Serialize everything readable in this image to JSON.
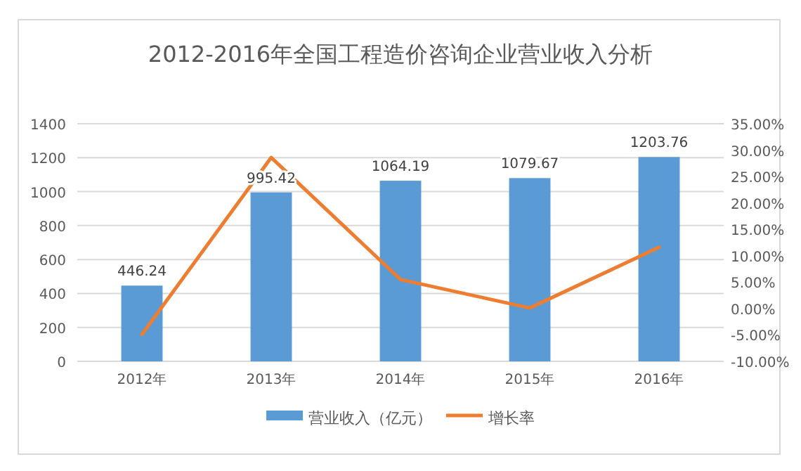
{
  "chart_data": {
    "type": "bar",
    "title": "2012-2016年全国工程造价咨询企业营业收入分析",
    "categories": [
      "2012年",
      "2013年",
      "2014年",
      "2015年",
      "2016年"
    ],
    "series": [
      {
        "name": "营业收入（亿元）",
        "color": "#5b9bd5",
        "values": [
          446.24,
          995.42,
          1064.19,
          1079.67,
          1203.76
        ],
        "value_labels": [
          "446.24",
          "995.42",
          "1064.19",
          "1079.67",
          "1203.76"
        ]
      },
      {
        "name": "增长率",
        "type": "line",
        "axis": "y2",
        "color": "#ed7d31",
        "values": [
          -4.9,
          28.6,
          5.5,
          0.1,
          11.6
        ]
      }
    ],
    "ylim": [
      0,
      1400
    ],
    "yticks": [
      0,
      200,
      400,
      600,
      800,
      1000,
      1200,
      1400
    ],
    "y2lim": [
      -10,
      35
    ],
    "y2ticks": [
      {
        "value": -10,
        "label": "-10.00%"
      },
      {
        "value": -5,
        "label": "-5.00%"
      },
      {
        "value": 0,
        "label": "0.00%"
      },
      {
        "value": 5,
        "label": "5.00%"
      },
      {
        "value": 10,
        "label": "10.00%"
      },
      {
        "value": 15,
        "label": "15.00%"
      },
      {
        "value": 20,
        "label": "20.00%"
      },
      {
        "value": 25,
        "label": "25.00%"
      },
      {
        "value": 30,
        "label": "30.00%"
      },
      {
        "value": 35,
        "label": "35.00%"
      }
    ],
    "grid": "y",
    "legend": "bottom",
    "marker": "none",
    "line_style": "solid"
  }
}
